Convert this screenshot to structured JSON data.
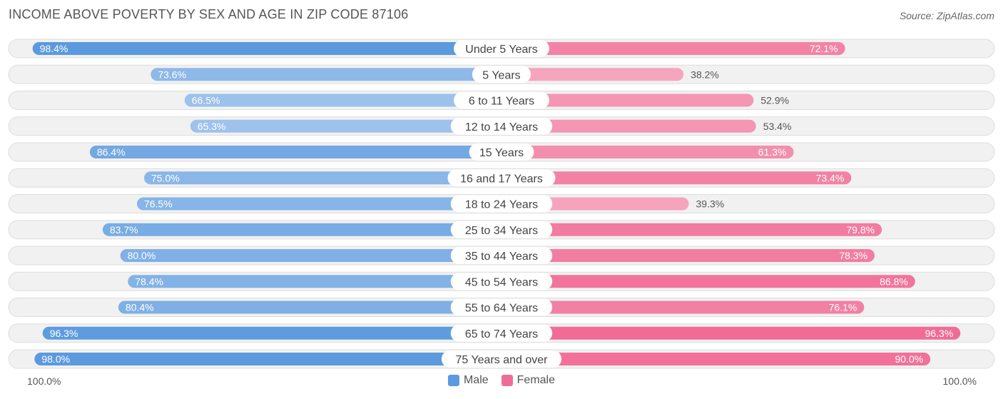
{
  "header": {
    "title": "INCOME ABOVE POVERTY BY SEX AND AGE IN ZIP CODE 87106",
    "source": "Source: ZipAtlas.com"
  },
  "axis": {
    "left_label": "100.0%",
    "right_label": "100.0%"
  },
  "legend": {
    "male_label": "Male",
    "female_label": "Female"
  },
  "colors": {
    "male_strong": "#5b9ade",
    "male_light": "#a9c9ee",
    "female_strong": "#f06c96",
    "female_light": "#f6a8c1",
    "row_bg": "#f1f1f1",
    "row_border": "#dddddd"
  },
  "chart_data": {
    "type": "bar",
    "orientation": "horizontal-diverging",
    "title": "INCOME ABOVE POVERTY BY SEX AND AGE IN ZIP CODE 87106",
    "xlim": [
      0,
      100
    ],
    "unit": "%",
    "categories": [
      "Under 5 Years",
      "5 Years",
      "6 to 11 Years",
      "12 to 14 Years",
      "15 Years",
      "16 and 17 Years",
      "18 to 24 Years",
      "25 to 34 Years",
      "35 to 44 Years",
      "45 to 54 Years",
      "55 to 64 Years",
      "65 to 74 Years",
      "75 Years and over"
    ],
    "series": [
      {
        "name": "Male",
        "values": [
          98.4,
          73.6,
          66.5,
          65.3,
          86.4,
          75.0,
          76.5,
          83.7,
          80.0,
          78.4,
          80.4,
          96.3,
          98.0
        ]
      },
      {
        "name": "Female",
        "values": [
          72.1,
          38.2,
          52.9,
          53.4,
          61.3,
          73.4,
          39.3,
          79.8,
          78.3,
          86.8,
          76.1,
          96.3,
          90.0
        ]
      }
    ],
    "legend_position": "bottom-center"
  }
}
